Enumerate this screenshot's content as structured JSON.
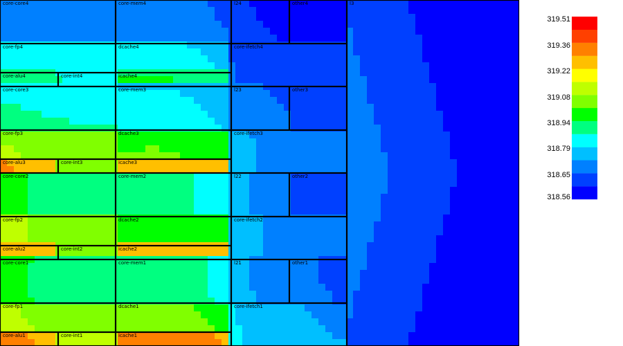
{
  "chart_data": {
    "type": "heatmap",
    "title": "",
    "colorbar": {
      "ticks": [
        "319.51",
        "319.36",
        "319.22",
        "319.08",
        "318.94",
        "318.79",
        "318.65",
        "318.56"
      ],
      "range": [
        318.56,
        319.51
      ],
      "colors": [
        "#0000ff",
        "#0040ff",
        "#0080ff",
        "#00bfff",
        "#00ffff",
        "#00ff80",
        "#00ff00",
        "#80ff00",
        "#bfff00",
        "#ffff00",
        "#ffbf00",
        "#ff8000",
        "#ff4000",
        "#ff0000"
      ]
    },
    "blocks": [
      {
        "label": "core-core4",
        "temp": 318.66
      },
      {
        "label": "core-mem4",
        "temp": 318.68
      },
      {
        "label": "l24",
        "temp": 318.62
      },
      {
        "label": "other4",
        "temp": 318.6
      },
      {
        "label": "l3",
        "temp": 318.57
      },
      {
        "label": "core-fp4",
        "temp": 318.88
      },
      {
        "label": "dcache4",
        "temp": 318.84
      },
      {
        "label": "core-ifetch4",
        "temp": 318.66
      },
      {
        "label": "core-alu4",
        "temp": 318.98
      },
      {
        "label": "core-int4",
        "temp": 318.9
      },
      {
        "label": "icache4",
        "temp": 319.02
      },
      {
        "label": "core-core3",
        "temp": 318.84
      },
      {
        "label": "core-mem3",
        "temp": 318.78
      },
      {
        "label": "l23",
        "temp": 318.7
      },
      {
        "label": "other3",
        "temp": 318.64
      },
      {
        "label": "core-fp3",
        "temp": 319.08
      },
      {
        "label": "dcache3",
        "temp": 319.02
      },
      {
        "label": "core-ifetch3",
        "temp": 318.76
      },
      {
        "label": "core-alu3",
        "temp": 319.4
      },
      {
        "label": "core-int3",
        "temp": 319.1
      },
      {
        "label": "icache3",
        "temp": 319.45
      },
      {
        "label": "core-core2",
        "temp": 318.86
      },
      {
        "label": "core-mem2",
        "temp": 318.8
      },
      {
        "label": "l22",
        "temp": 318.74
      },
      {
        "label": "other2",
        "temp": 318.66
      },
      {
        "label": "core-fp2",
        "temp": 319.08
      },
      {
        "label": "dcache2",
        "temp": 319.0
      },
      {
        "label": "core-ifetch2",
        "temp": 318.76
      },
      {
        "label": "core-alu2",
        "temp": 319.38
      },
      {
        "label": "core-int2",
        "temp": 319.1
      },
      {
        "label": "icache2",
        "temp": 319.44
      },
      {
        "label": "core-core1",
        "temp": 318.86
      },
      {
        "label": "core-mem1",
        "temp": 318.82
      },
      {
        "label": "l21",
        "temp": 318.74
      },
      {
        "label": "other1",
        "temp": 318.68
      },
      {
        "label": "core-fp1",
        "temp": 319.06
      },
      {
        "label": "dcache1",
        "temp": 319.0
      },
      {
        "label": "core-ifetch1",
        "temp": 318.78
      },
      {
        "label": "core-alu1",
        "temp": 319.38
      },
      {
        "label": "core-int1",
        "temp": 319.12
      },
      {
        "label": "icache1",
        "temp": 319.45
      }
    ]
  }
}
